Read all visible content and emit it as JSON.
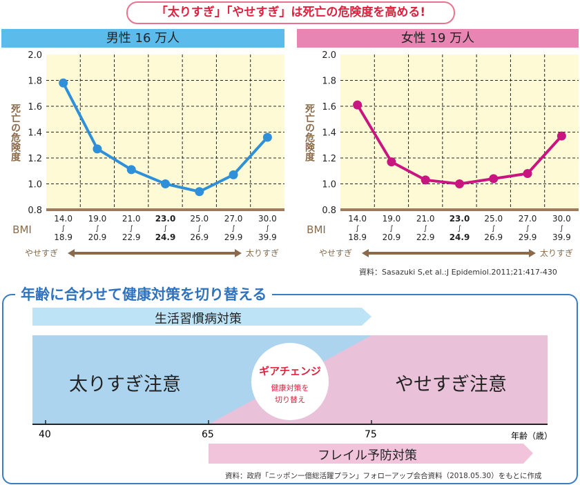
{
  "title": "「太りすぎ」「やせすぎ」は死亡の危険度を高める!",
  "chart_data": [
    {
      "type": "line",
      "title": "男性 16 万人",
      "ylabel": "死亡の危険度",
      "xlabel": "BMI",
      "ylim": [
        0.8,
        2.0
      ],
      "yticks": [
        "0.8",
        "1.0",
        "1.2",
        "1.4",
        "1.6",
        "1.8",
        "2.0"
      ],
      "grid": true,
      "color": "#2f8fd8",
      "categories": [
        [
          "14.0",
          "18.9"
        ],
        [
          "19.0",
          "20.9"
        ],
        [
          "21.0",
          "22.9"
        ],
        [
          "23.0",
          "24.9"
        ],
        [
          "25.0",
          "26.9"
        ],
        [
          "27.0",
          "29.9"
        ],
        [
          "30.0",
          "39.9"
        ]
      ],
      "values": [
        1.78,
        1.27,
        1.11,
        1.0,
        0.94,
        1.07,
        1.36
      ],
      "left_arrow": "やせすぎ",
      "right_arrow": "太りすぎ"
    },
    {
      "type": "line",
      "title": "女性 19 万人",
      "ylabel": "死亡の危険度",
      "xlabel": "BMI",
      "ylim": [
        0.8,
        2.0
      ],
      "yticks": [
        "0.8",
        "1.0",
        "1.2",
        "1.4",
        "1.6",
        "1.8",
        "2.0"
      ],
      "grid": true,
      "color": "#c8157f",
      "categories": [
        [
          "14.0",
          "18.9"
        ],
        [
          "19.0",
          "20.9"
        ],
        [
          "21.0",
          "22.9"
        ],
        [
          "23.0",
          "24.9"
        ],
        [
          "25.0",
          "26.9"
        ],
        [
          "27.0",
          "29.9"
        ],
        [
          "30.0",
          "39.9"
        ]
      ],
      "values": [
        1.61,
        1.17,
        1.03,
        1.0,
        1.04,
        1.08,
        1.37
      ],
      "left_arrow": "やせすぎ",
      "right_arrow": "太りすぎ"
    }
  ],
  "source1": "資料：Sasazuki S,et al.:J Epidemiol.2011;21:417-430",
  "lower": {
    "title": "年齢に合わせて健康対策を切り替える",
    "lifestyle": "生活習慣病対策",
    "left_zone": "太りすぎ注意",
    "right_zone": "やせすぎ注意",
    "gear_title": "ギアチェンジ",
    "gear_sub1": "健康対策を",
    "gear_sub2": "切り替え",
    "ages": [
      "40",
      "65",
      "75"
    ],
    "age_unit": "年齢（歳）",
    "frail": "フレイル予防対策",
    "source": "資料：政府「ニッポン一億総活躍プラン」フォローアップ会合資料（2018.05.30）をもとに作成"
  }
}
